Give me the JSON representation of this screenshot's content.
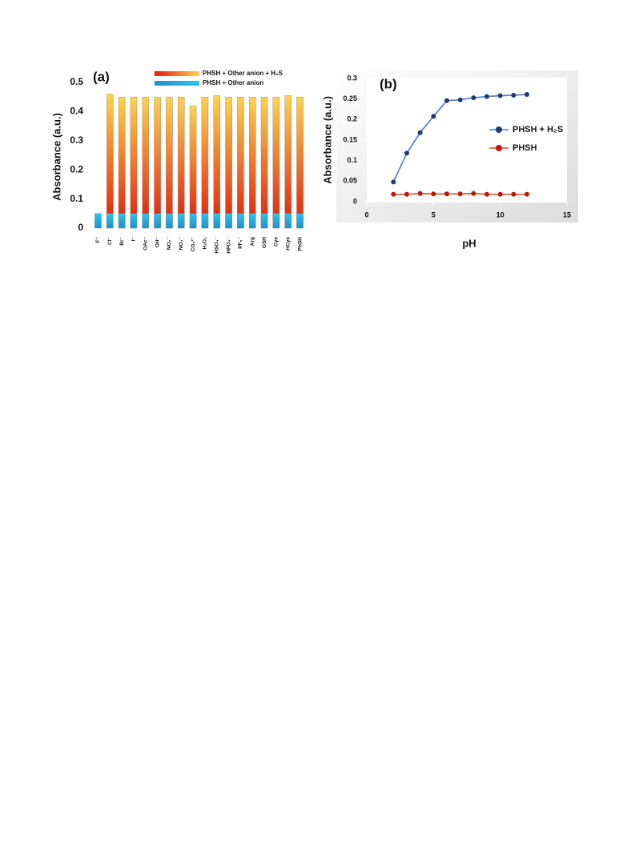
{
  "chart_data": [
    {
      "type": "bar",
      "title": "(a)",
      "y_label": "Absorbance (a.u.)",
      "categories": [
        "F⁻",
        "Cl⁻",
        "Br⁻",
        "I⁻",
        "OAc⁻",
        "OH⁻",
        "NO₂⁻",
        "NO₃⁻",
        "CO₃²⁻",
        "H₂O₂",
        "HSO₄⁻",
        "HPO₄⁻",
        "PF₆⁻",
        "Arg",
        "GSH",
        "Cys",
        "HCys",
        "PhSH"
      ],
      "series": [
        {
          "name": "PHSH + Other anion + H₂S",
          "color": [
            "#fcd34d",
            "#e31a0b"
          ],
          "values": [
            null,
            0.46,
            0.45,
            0.45,
            0.45,
            0.45,
            0.45,
            0.45,
            0.42,
            0.45,
            0.455,
            0.45,
            0.45,
            0.45,
            0.45,
            0.45,
            0.455,
            0.45
          ]
        },
        {
          "name": "PHSH + Other anion",
          "color": [
            "#2ec4ee",
            "#1e8fc8"
          ],
          "values": [
            0.05,
            0.05,
            0.05,
            0.05,
            0.05,
            0.05,
            0.05,
            0.05,
            0.05,
            0.05,
            0.05,
            0.05,
            0.05,
            0.05,
            0.05,
            0.05,
            0.05,
            0.05
          ]
        }
      ],
      "ylim": [
        0,
        0.5
      ],
      "yticks": [
        0,
        0.1,
        0.2,
        0.3,
        0.4,
        0.5
      ]
    },
    {
      "type": "line",
      "title": "(b)",
      "x_label": "pH",
      "y_label": "Absorbance (a.u.)",
      "x": [
        2,
        3,
        4,
        5,
        6,
        7,
        8,
        9,
        10,
        11,
        12
      ],
      "series": [
        {
          "name": "PHSH + H₂S",
          "color": "#1f3b73",
          "line_color": "#4a7cc9",
          "values": [
            0.048,
            0.118,
            0.168,
            0.208,
            0.246,
            0.248,
            0.253,
            0.256,
            0.258,
            0.259,
            0.261
          ]
        },
        {
          "name": "PHSH",
          "color": "#c0150c",
          "line_color": "#d2501e",
          "values": [
            0.018,
            0.018,
            0.02,
            0.019,
            0.019,
            0.019,
            0.02,
            0.018,
            0.018,
            0.018,
            0.018
          ]
        }
      ],
      "xlim": [
        0,
        15
      ],
      "xticks": [
        0,
        5,
        10,
        15
      ],
      "ylim": [
        0,
        0.3
      ],
      "yticks": [
        0,
        0.05,
        0.1,
        0.15,
        0.2,
        0.25,
        0.3
      ]
    }
  ]
}
